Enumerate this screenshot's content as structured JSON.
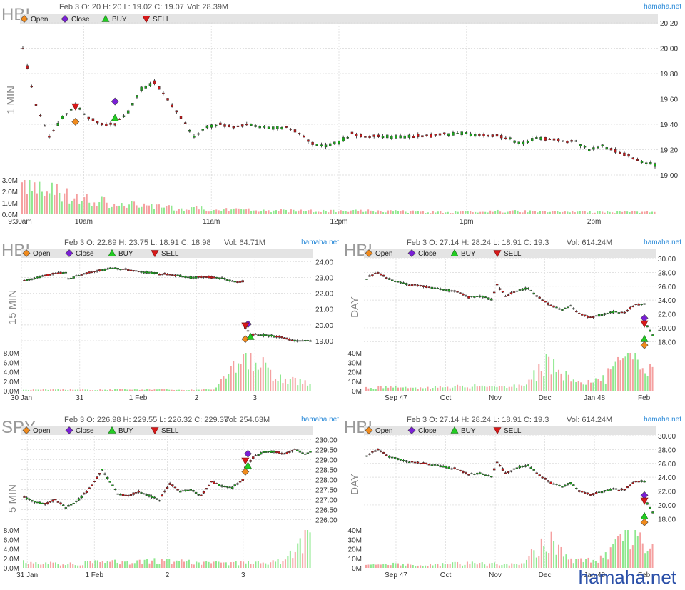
{
  "brand": "hamaha.net",
  "watermark": "hamaha.net",
  "legend": [
    "Open",
    "Close",
    "BUY",
    "SELL"
  ],
  "colors": {
    "open": "#f08a1c",
    "close": "#7a1fd6",
    "buy": "#22cc22",
    "sell": "#d81818",
    "up": "#1aa81a",
    "down": "#c8181a",
    "volUp": "#8fe88f",
    "volDown": "#f5a0a0",
    "legendBar": "#e4e4e4",
    "grid": "#d8d8d8"
  },
  "icons": {
    "open": "diamond-icon",
    "close": "diamond-icon",
    "buy": "triangle-up-icon",
    "sell": "triangle-down-icon"
  },
  "chart_data": [
    {
      "type": "candlestick",
      "symbol": "HBI",
      "timeframe": "1 MIN",
      "info": "Feb 3 O: 20 H: 20 L: 19.02 C: 19.07",
      "volume_label": "Vol: 28.39M",
      "ylim": [
        19.0,
        20.2
      ],
      "yticks": [
        "20.20",
        "20.00",
        "19.80",
        "19.60",
        "19.40",
        "19.20",
        "19.00"
      ],
      "vol_ticks": [
        "3.0M",
        "2.0M",
        "1.0M",
        "0.0M"
      ],
      "vol_max": 3.0,
      "xticks": [
        "9:30am",
        "10am",
        "11am",
        "12pm",
        "1pm",
        "2pm"
      ],
      "path": [
        [
          0,
          20.0
        ],
        [
          3,
          19.55
        ],
        [
          6,
          19.3
        ],
        [
          9,
          19.45
        ],
        [
          12,
          19.55
        ],
        [
          15,
          19.45
        ],
        [
          18,
          19.4
        ],
        [
          21,
          19.4
        ],
        [
          24,
          19.5
        ],
        [
          27,
          19.68
        ],
        [
          30,
          19.73
        ],
        [
          33,
          19.6
        ],
        [
          36,
          19.45
        ],
        [
          39,
          19.3
        ],
        [
          42,
          19.38
        ],
        [
          45,
          19.4
        ],
        [
          48,
          19.38
        ],
        [
          51,
          19.4
        ],
        [
          54,
          19.38
        ],
        [
          57,
          19.37
        ],
        [
          60,
          19.38
        ],
        [
          63,
          19.33
        ],
        [
          66,
          19.25
        ],
        [
          69,
          19.23
        ],
        [
          72,
          19.26
        ],
        [
          75,
          19.33
        ],
        [
          78,
          19.3
        ],
        [
          81,
          19.31
        ],
        [
          84,
          19.3
        ],
        [
          87,
          19.3
        ],
        [
          90,
          19.31
        ],
        [
          93,
          19.31
        ],
        [
          96,
          19.32
        ],
        [
          99,
          19.33
        ],
        [
          102,
          19.32
        ],
        [
          105,
          19.31
        ],
        [
          108,
          19.31
        ],
        [
          111,
          19.28
        ],
        [
          114,
          19.25
        ],
        [
          117,
          19.29
        ],
        [
          120,
          19.28
        ],
        [
          123,
          19.27
        ],
        [
          126,
          19.26
        ],
        [
          129,
          19.2
        ],
        [
          132,
          19.23
        ],
        [
          135,
          19.19
        ],
        [
          138,
          19.15
        ],
        [
          141,
          19.1
        ],
        [
          144,
          19.08
        ]
      ],
      "markers": [
        {
          "kind": "sell",
          "x": 12,
          "y": 19.54
        },
        {
          "kind": "open",
          "x": 12,
          "y": 19.42
        },
        {
          "kind": "close",
          "x": 21,
          "y": 19.58
        },
        {
          "kind": "buy",
          "x": 21,
          "y": 19.45
        }
      ],
      "volumes": [
        2.8,
        1.2,
        0.6,
        0.4,
        0.3,
        0.3,
        0.2,
        0.3,
        0.2,
        0.2
      ]
    },
    {
      "type": "candlestick",
      "symbol": "HBI",
      "timeframe": "15 MIN",
      "info": "Feb 3 O: 22.89 H: 23.75 L: 18.91 C: 18.98",
      "volume_label": "Vol: 64.71M",
      "ylim": [
        18.5,
        24.2
      ],
      "yticks": [
        "24.00",
        "23.00",
        "22.00",
        "21.00",
        "20.00",
        "19.00"
      ],
      "vol_ticks": [
        "8.0M",
        "6.0M",
        "4.0M",
        "2.0M",
        "0.0M"
      ],
      "vol_max": 8.0,
      "xticks": [
        "30 Jan",
        "31",
        "1 Feb",
        "2",
        "3"
      ],
      "path": [
        [
          0,
          22.8
        ],
        [
          6,
          23.05
        ],
        [
          12,
          23.25
        ],
        [
          16,
          23.3
        ],
        [
          17,
          22.9
        ],
        [
          22,
          23.2
        ],
        [
          28,
          23.4
        ],
        [
          34,
          23.6
        ],
        [
          40,
          23.5
        ],
        [
          46,
          23.35
        ],
        [
          52,
          23.25
        ],
        [
          58,
          23.15
        ],
        [
          64,
          23.0
        ],
        [
          70,
          23.05
        ],
        [
          76,
          22.95
        ],
        [
          82,
          22.7
        ],
        [
          84,
          22.75
        ],
        [
          85,
          19.8
        ],
        [
          87,
          19.4
        ],
        [
          92,
          19.35
        ],
        [
          98,
          19.25
        ],
        [
          104,
          19.0
        ],
        [
          110,
          19.0
        ]
      ],
      "markers": [
        {
          "kind": "close",
          "x": 86,
          "y": 20.05
        },
        {
          "kind": "sell",
          "x": 85,
          "y": 19.95
        },
        {
          "kind": "open",
          "x": 85,
          "y": 19.1
        },
        {
          "kind": "buy",
          "x": 87,
          "y": 19.25
        }
      ],
      "volumes": [
        0.2,
        0.3,
        0.2,
        0.3,
        0.3,
        0.2,
        0.3,
        8.0,
        3.0,
        1.5
      ]
    },
    {
      "type": "candlestick",
      "symbol": "HBI",
      "timeframe": "DAY",
      "info": "Feb 3 O: 27.14 H: 28.24 L: 18.91 C: 19.3",
      "volume_label": "Vol: 614.24M",
      "ylim": [
        17.0,
        30.0
      ],
      "yticks": [
        "30.00",
        "28.00",
        "26.00",
        "24.00",
        "22.00",
        "20.00",
        "18.00"
      ],
      "vol_ticks": [
        "40M",
        "30M",
        "20M",
        "10M",
        "0M"
      ],
      "vol_max": 40,
      "xticks": [
        "Sep 47",
        "Oct",
        "Nov",
        "Dec",
        "Jan 48",
        "Feb"
      ],
      "path": [
        [
          0,
          27.2
        ],
        [
          4,
          28.0
        ],
        [
          8,
          27.0
        ],
        [
          14,
          26.3
        ],
        [
          20,
          26.0
        ],
        [
          26,
          25.6
        ],
        [
          32,
          25.2
        ],
        [
          36,
          24.4
        ],
        [
          40,
          24.6
        ],
        [
          44,
          24.1
        ],
        [
          46,
          26.2
        ],
        [
          49,
          24.6
        ],
        [
          54,
          25.5
        ],
        [
          57,
          25.7
        ],
        [
          61,
          24.3
        ],
        [
          65,
          23.2
        ],
        [
          69,
          22.6
        ],
        [
          72,
          23.2
        ],
        [
          75,
          22.0
        ],
        [
          79,
          21.5
        ],
        [
          83,
          21.9
        ],
        [
          87,
          22.3
        ],
        [
          91,
          22.2
        ],
        [
          95,
          23.4
        ],
        [
          98,
          23.4
        ],
        [
          99,
          20.2
        ],
        [
          101,
          18.9
        ]
      ],
      "markers": [
        {
          "kind": "close",
          "x": 98,
          "y": 21.4
        },
        {
          "kind": "sell",
          "x": 98,
          "y": 20.6
        },
        {
          "kind": "buy",
          "x": 98,
          "y": 18.4
        },
        {
          "kind": "open",
          "x": 98,
          "y": 17.5
        }
      ],
      "volumes": [
        3,
        4,
        3,
        4,
        5,
        4,
        6,
        30,
        8,
        10,
        35,
        25
      ]
    },
    {
      "type": "candlestick",
      "symbol": "SPY",
      "timeframe": "5 MIN",
      "info": "Feb 3 O: 226.98 H: 229.55 L: 226.32 C: 229.37",
      "volume_label": "Vol: 254.63M",
      "ylim": [
        225.7,
        230.2
      ],
      "yticks": [
        "230.00",
        "229.50",
        "229.00",
        "228.50",
        "228.00",
        "227.50",
        "227.00",
        "226.50",
        "226.00"
      ],
      "vol_ticks": [
        "8.0M",
        "6.0M",
        "4.0M",
        "2.0M",
        "0.0M"
      ],
      "vol_max": 8.0,
      "xticks": [
        "31 Jan",
        "1 Feb",
        "2",
        "3"
      ],
      "path": [
        [
          0,
          227.1
        ],
        [
          4,
          226.9
        ],
        [
          8,
          226.8
        ],
        [
          12,
          227.0
        ],
        [
          16,
          226.6
        ],
        [
          20,
          226.9
        ],
        [
          24,
          227.4
        ],
        [
          27,
          227.9
        ],
        [
          30,
          228.5
        ],
        [
          33,
          227.9
        ],
        [
          36,
          227.3
        ],
        [
          40,
          227.2
        ],
        [
          44,
          227.4
        ],
        [
          48,
          227.2
        ],
        [
          52,
          227.0
        ],
        [
          56,
          227.8
        ],
        [
          60,
          227.4
        ],
        [
          64,
          227.5
        ],
        [
          68,
          227.2
        ],
        [
          72,
          227.9
        ],
        [
          76,
          227.7
        ],
        [
          80,
          227.6
        ],
        [
          84,
          228.0
        ],
        [
          85,
          228.6
        ],
        [
          88,
          229.1
        ],
        [
          92,
          229.4
        ],
        [
          96,
          229.4
        ],
        [
          100,
          229.3
        ],
        [
          104,
          229.5
        ],
        [
          108,
          229.3
        ],
        [
          110,
          229.4
        ]
      ],
      "markers": [
        {
          "kind": "close",
          "x": 86,
          "y": 229.3
        },
        {
          "kind": "sell",
          "x": 85,
          "y": 228.95
        },
        {
          "kind": "buy",
          "x": 86,
          "y": 228.7
        },
        {
          "kind": "open",
          "x": 85,
          "y": 228.4
        }
      ],
      "volumes": [
        1.2,
        1.0,
        0.9,
        1.4,
        1.1,
        1.6,
        1.3,
        1.1,
        1.0,
        1.2,
        1.5,
        7.5
      ]
    },
    {
      "type": "candlestick",
      "symbol": "HBI",
      "timeframe": "DAY",
      "info": "Feb 3 O: 27.14 H: 28.24 L: 18.91 C: 19.3",
      "volume_label": "Vol: 614.24M",
      "ylim": [
        17.0,
        30.0
      ],
      "yticks": [
        "30.00",
        "28.00",
        "26.00",
        "24.00",
        "22.00",
        "20.00",
        "18.00"
      ],
      "vol_ticks": [
        "40M",
        "30M",
        "20M",
        "10M",
        "0M"
      ],
      "vol_max": 40,
      "xticks": [
        "Sep 47",
        "Oct",
        "Nov",
        "Dec",
        "Jan 48",
        "Feb"
      ],
      "path": [
        [
          0,
          27.2
        ],
        [
          4,
          28.0
        ],
        [
          8,
          27.0
        ],
        [
          14,
          26.3
        ],
        [
          20,
          26.0
        ],
        [
          26,
          25.6
        ],
        [
          32,
          25.2
        ],
        [
          36,
          24.4
        ],
        [
          40,
          24.6
        ],
        [
          44,
          24.1
        ],
        [
          46,
          26.2
        ],
        [
          49,
          24.6
        ],
        [
          54,
          25.5
        ],
        [
          57,
          25.7
        ],
        [
          61,
          24.3
        ],
        [
          65,
          23.2
        ],
        [
          69,
          22.6
        ],
        [
          72,
          23.2
        ],
        [
          75,
          22.0
        ],
        [
          79,
          21.5
        ],
        [
          83,
          21.9
        ],
        [
          87,
          22.3
        ],
        [
          91,
          22.2
        ],
        [
          95,
          23.4
        ],
        [
          98,
          23.4
        ],
        [
          99,
          20.2
        ],
        [
          101,
          18.9
        ]
      ],
      "markers": [
        {
          "kind": "close",
          "x": 98,
          "y": 21.4
        },
        {
          "kind": "sell",
          "x": 98,
          "y": 20.6
        },
        {
          "kind": "buy",
          "x": 98,
          "y": 18.4
        },
        {
          "kind": "open",
          "x": 98,
          "y": 17.5
        }
      ],
      "volumes": [
        3,
        4,
        3,
        4,
        5,
        4,
        6,
        30,
        8,
        10,
        35,
        25
      ]
    }
  ]
}
